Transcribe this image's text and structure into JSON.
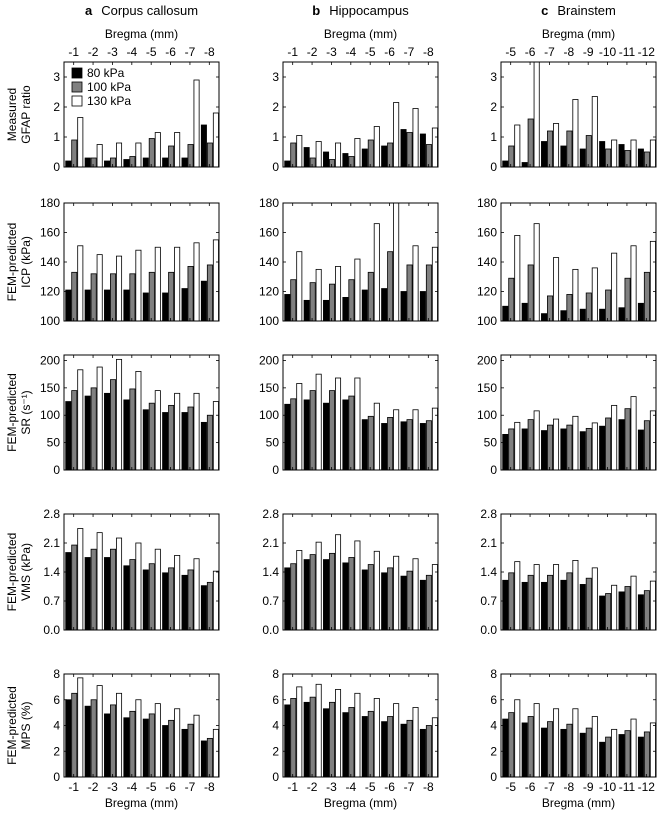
{
  "legend": [
    "80 kPa",
    "100 kPa",
    "130 kPa"
  ],
  "series_colors": [
    "#000000",
    "#808080",
    "#ffffff"
  ],
  "columns": [
    {
      "letter": "a",
      "title": "Corpus callosum",
      "categories": [
        "-1",
        "-2",
        "-3",
        "-4",
        "-5",
        "-6",
        "-7",
        "-8"
      ]
    },
    {
      "letter": "b",
      "title": "Hippocampus",
      "categories": [
        "-1",
        "-2",
        "-3",
        "-4",
        "-5",
        "-6",
        "-7",
        "-8"
      ]
    },
    {
      "letter": "c",
      "title": "Brainstem",
      "categories": [
        "-5",
        "-6",
        "-7",
        "-8",
        "-9",
        "-10",
        "-11",
        "-12"
      ]
    }
  ],
  "axis_x_label": "Bregma (mm)",
  "rows": [
    {
      "ylabel": [
        "Measured",
        "GFAP ratio"
      ],
      "ylim": [
        0,
        3.5
      ],
      "yticks": [
        "0",
        "1",
        "2",
        "3"
      ],
      "ytick_values": [
        0,
        1,
        2,
        3
      ]
    },
    {
      "ylabel": [
        "FEM-predicted",
        "ICP (kPa)"
      ],
      "ylim": [
        100,
        180
      ],
      "yticks": [
        "100",
        "120",
        "140",
        "160",
        "180"
      ],
      "ytick_values": [
        100,
        120,
        140,
        160,
        180
      ]
    },
    {
      "ylabel": [
        "FEM-predicted",
        "SR (s⁻¹)"
      ],
      "ylim": [
        0,
        210
      ],
      "yticks": [
        "0",
        "50",
        "100",
        "150",
        "200"
      ],
      "ytick_values": [
        0,
        50,
        100,
        150,
        200
      ]
    },
    {
      "ylabel": [
        "FEM-predicted",
        "VMS (kPa)"
      ],
      "ylim": [
        0,
        2.8
      ],
      "yticks": [
        "0.0",
        "0.7",
        "1.4",
        "2.1",
        "2.8"
      ],
      "ytick_values": [
        0,
        0.7,
        1.4,
        2.1,
        2.8
      ]
    },
    {
      "ylabel": [
        "FEM-predicted",
        "MPS (%)"
      ],
      "ylim": [
        0,
        8
      ],
      "yticks": [
        "0",
        "2",
        "4",
        "6",
        "8"
      ],
      "ytick_values": [
        0,
        2,
        4,
        6,
        8
      ]
    }
  ],
  "chart_data": [
    {
      "type": "bar",
      "panel": "GFAP-corpus-callosum",
      "categories": [
        "-1",
        "-2",
        "-3",
        "-4",
        "-5",
        "-6",
        "-7",
        "-8"
      ],
      "ylim": [
        0,
        3.5
      ],
      "series": [
        {
          "name": "80 kPa",
          "values": [
            0.2,
            0.3,
            0.2,
            0.25,
            0.3,
            0.3,
            0.3,
            1.4
          ]
        },
        {
          "name": "100 kPa",
          "values": [
            0.9,
            0.3,
            0.3,
            0.35,
            0.95,
            0.7,
            0.75,
            0.8
          ]
        },
        {
          "name": "130 kPa",
          "values": [
            1.65,
            0.75,
            0.8,
            0.8,
            1.15,
            1.15,
            2.9,
            1.8
          ]
        }
      ]
    },
    {
      "type": "bar",
      "panel": "GFAP-hippocampus",
      "categories": [
        "-1",
        "-2",
        "-3",
        "-4",
        "-5",
        "-6",
        "-7",
        "-8"
      ],
      "ylim": [
        0,
        3.5
      ],
      "series": [
        {
          "name": "80 kPa",
          "values": [
            0.2,
            0.65,
            0.5,
            0.45,
            0.6,
            0.7,
            1.25,
            1.1
          ]
        },
        {
          "name": "100 kPa",
          "values": [
            0.8,
            0.3,
            0.25,
            0.35,
            0.9,
            0.8,
            1.15,
            0.75
          ]
        },
        {
          "name": "130 kPa",
          "values": [
            1.05,
            0.85,
            0.8,
            0.95,
            1.35,
            2.15,
            1.95,
            1.3
          ]
        }
      ]
    },
    {
      "type": "bar",
      "panel": "GFAP-brainstem",
      "categories": [
        "-5",
        "-6",
        "-7",
        "-8",
        "-9",
        "-10",
        "-11",
        "-12"
      ],
      "ylim": [
        0,
        3.5
      ],
      "series": [
        {
          "name": "80 kPa",
          "values": [
            0.2,
            0.15,
            0.85,
            0.7,
            0.6,
            0.85,
            0.75,
            0.6
          ]
        },
        {
          "name": "100 kPa",
          "values": [
            0.7,
            1.6,
            1.2,
            1.2,
            1.05,
            0.6,
            0.55,
            0.5
          ]
        },
        {
          "name": "130 kPa",
          "values": [
            1.4,
            3.5,
            1.45,
            2.25,
            2.35,
            0.9,
            0.9,
            0.9
          ]
        }
      ]
    },
    {
      "type": "bar",
      "panel": "ICP-corpus-callosum",
      "categories": [
        "-1",
        "-2",
        "-3",
        "-4",
        "-5",
        "-6",
        "-7",
        "-8"
      ],
      "ylim": [
        100,
        180
      ],
      "series": [
        {
          "name": "80 kPa",
          "values": [
            121,
            121,
            121,
            121,
            119,
            119,
            122,
            127
          ]
        },
        {
          "name": "100 kPa",
          "values": [
            133,
            132,
            132,
            132,
            133,
            133,
            137,
            138
          ]
        },
        {
          "name": "130 kPa",
          "values": [
            151,
            145,
            144,
            148,
            150,
            150,
            153,
            155
          ]
        }
      ]
    },
    {
      "type": "bar",
      "panel": "ICP-hippocampus",
      "categories": [
        "-1",
        "-2",
        "-3",
        "-4",
        "-5",
        "-6",
        "-7",
        "-8"
      ],
      "ylim": [
        100,
        180
      ],
      "series": [
        {
          "name": "80 kPa",
          "values": [
            118,
            114,
            114,
            116,
            121,
            122,
            120,
            120
          ]
        },
        {
          "name": "100 kPa",
          "values": [
            128,
            126,
            125,
            128,
            133,
            147,
            138,
            138
          ]
        },
        {
          "name": "130 kPa",
          "values": [
            147,
            135,
            137,
            142,
            166,
            180,
            151,
            150
          ]
        }
      ]
    },
    {
      "type": "bar",
      "panel": "ICP-brainstem",
      "categories": [
        "-5",
        "-6",
        "-7",
        "-8",
        "-9",
        "-10",
        "-11",
        "-12"
      ],
      "ylim": [
        100,
        180
      ],
      "series": [
        {
          "name": "80 kPa",
          "values": [
            110,
            112,
            105,
            107,
            108,
            108,
            109,
            112
          ]
        },
        {
          "name": "100 kPa",
          "values": [
            129,
            138,
            117,
            118,
            119,
            121,
            129,
            133
          ]
        },
        {
          "name": "130 kPa",
          "values": [
            158,
            166,
            143,
            135,
            136,
            146,
            151,
            154
          ]
        }
      ]
    },
    {
      "type": "bar",
      "panel": "SR-corpus-callosum",
      "categories": [
        "-1",
        "-2",
        "-3",
        "-4",
        "-5",
        "-6",
        "-7",
        "-8"
      ],
      "ylim": [
        0,
        210
      ],
      "series": [
        {
          "name": "80 kPa",
          "values": [
            125,
            135,
            140,
            128,
            110,
            105,
            105,
            87
          ]
        },
        {
          "name": "100 kPa",
          "values": [
            145,
            150,
            165,
            148,
            122,
            118,
            115,
            100
          ]
        },
        {
          "name": "130 kPa",
          "values": [
            183,
            188,
            202,
            180,
            145,
            140,
            140,
            125
          ]
        }
      ]
    },
    {
      "type": "bar",
      "panel": "SR-hippocampus",
      "categories": [
        "-1",
        "-2",
        "-3",
        "-4",
        "-5",
        "-6",
        "-7",
        "-8"
      ],
      "ylim": [
        0,
        210
      ],
      "series": [
        {
          "name": "80 kPa",
          "values": [
            120,
            128,
            122,
            128,
            92,
            85,
            88,
            85
          ]
        },
        {
          "name": "100 kPa",
          "values": [
            130,
            145,
            145,
            135,
            98,
            96,
            92,
            90
          ]
        },
        {
          "name": "130 kPa",
          "values": [
            158,
            175,
            168,
            168,
            122,
            110,
            110,
            113
          ]
        }
      ]
    },
    {
      "type": "bar",
      "panel": "SR-brainstem",
      "categories": [
        "-5",
        "-6",
        "-7",
        "-8",
        "-9",
        "-10",
        "-11",
        "-12"
      ],
      "ylim": [
        0,
        210
      ],
      "series": [
        {
          "name": "80 kPa",
          "values": [
            65,
            75,
            72,
            75,
            70,
            80,
            92,
            73
          ]
        },
        {
          "name": "100 kPa",
          "values": [
            75,
            92,
            82,
            82,
            76,
            95,
            112,
            90
          ]
        },
        {
          "name": "130 kPa",
          "values": [
            87,
            108,
            93,
            98,
            86,
            118,
            134,
            108
          ]
        }
      ]
    },
    {
      "type": "bar",
      "panel": "VMS-corpus-callosum",
      "categories": [
        "-1",
        "-2",
        "-3",
        "-4",
        "-5",
        "-6",
        "-7",
        "-8"
      ],
      "ylim": [
        0,
        2.8
      ],
      "series": [
        {
          "name": "80 kPa",
          "values": [
            1.87,
            1.75,
            1.75,
            1.55,
            1.45,
            1.38,
            1.32,
            1.07
          ]
        },
        {
          "name": "100 kPa",
          "values": [
            2.05,
            1.95,
            1.95,
            1.7,
            1.6,
            1.5,
            1.45,
            1.15
          ]
        },
        {
          "name": "130 kPa",
          "values": [
            2.45,
            2.35,
            2.22,
            2.1,
            1.95,
            1.8,
            1.72,
            1.42
          ]
        }
      ]
    },
    {
      "type": "bar",
      "panel": "VMS-hippocampus",
      "categories": [
        "-1",
        "-2",
        "-3",
        "-4",
        "-5",
        "-6",
        "-7",
        "-8"
      ],
      "ylim": [
        0,
        2.8
      ],
      "series": [
        {
          "name": "80 kPa",
          "values": [
            1.5,
            1.7,
            1.7,
            1.62,
            1.45,
            1.38,
            1.3,
            1.2
          ]
        },
        {
          "name": "100 kPa",
          "values": [
            1.6,
            1.82,
            1.85,
            1.75,
            1.58,
            1.5,
            1.42,
            1.32
          ]
        },
        {
          "name": "130 kPa",
          "values": [
            1.92,
            2.12,
            2.3,
            2.15,
            1.9,
            1.78,
            1.72,
            1.58
          ]
        }
      ]
    },
    {
      "type": "bar",
      "panel": "VMS-brainstem",
      "categories": [
        "-5",
        "-6",
        "-7",
        "-8",
        "-9",
        "-10",
        "-11",
        "-12"
      ],
      "ylim": [
        0,
        2.8
      ],
      "series": [
        {
          "name": "80 kPa",
          "values": [
            1.2,
            1.15,
            1.15,
            1.2,
            1.1,
            0.82,
            0.92,
            0.85
          ]
        },
        {
          "name": "100 kPa",
          "values": [
            1.38,
            1.32,
            1.32,
            1.38,
            1.25,
            0.88,
            1.05,
            0.95
          ]
        },
        {
          "name": "130 kPa",
          "values": [
            1.65,
            1.58,
            1.58,
            1.68,
            1.5,
            1.08,
            1.3,
            1.18
          ]
        }
      ]
    },
    {
      "type": "bar",
      "panel": "MPS-corpus-callosum",
      "categories": [
        "-1",
        "-2",
        "-3",
        "-4",
        "-5",
        "-6",
        "-7",
        "-8"
      ],
      "ylim": [
        0,
        8
      ],
      "series": [
        {
          "name": "80 kPa",
          "values": [
            6.0,
            5.5,
            4.9,
            4.6,
            4.5,
            4.0,
            3.7,
            2.8
          ]
        },
        {
          "name": "100 kPa",
          "values": [
            6.5,
            6.0,
            5.6,
            5.1,
            4.9,
            4.4,
            4.1,
            3.0
          ]
        },
        {
          "name": "130 kPa",
          "values": [
            7.7,
            7.1,
            6.5,
            6.0,
            5.7,
            5.3,
            4.8,
            3.7
          ]
        }
      ]
    },
    {
      "type": "bar",
      "panel": "MPS-hippocampus",
      "categories": [
        "-1",
        "-2",
        "-3",
        "-4",
        "-5",
        "-6",
        "-7",
        "-8"
      ],
      "ylim": [
        0,
        8
      ],
      "series": [
        {
          "name": "80 kPa",
          "values": [
            5.6,
            5.8,
            5.3,
            5.0,
            4.7,
            4.3,
            4.1,
            3.7
          ]
        },
        {
          "name": "100 kPa",
          "values": [
            6.1,
            6.2,
            5.8,
            5.4,
            5.1,
            4.7,
            4.4,
            4.0
          ]
        },
        {
          "name": "130 kPa",
          "values": [
            7.0,
            7.2,
            6.8,
            6.5,
            6.1,
            5.7,
            5.4,
            4.6
          ]
        }
      ]
    },
    {
      "type": "bar",
      "panel": "MPS-brainstem",
      "categories": [
        "-5",
        "-6",
        "-7",
        "-8",
        "-9",
        "-10",
        "-11",
        "-12"
      ],
      "ylim": [
        0,
        8
      ],
      "series": [
        {
          "name": "80 kPa",
          "values": [
            4.5,
            4.2,
            3.8,
            3.7,
            3.4,
            2.7,
            3.3,
            3.1
          ]
        },
        {
          "name": "100 kPa",
          "values": [
            5.0,
            4.7,
            4.3,
            4.1,
            3.8,
            3.1,
            3.6,
            3.5
          ]
        },
        {
          "name": "130 kPa",
          "values": [
            6.0,
            5.7,
            5.3,
            5.3,
            4.7,
            3.7,
            4.5,
            4.2
          ]
        }
      ]
    }
  ]
}
